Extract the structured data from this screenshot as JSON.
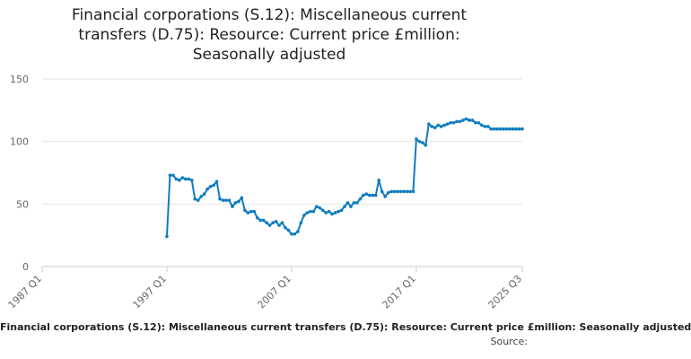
{
  "chart_data": {
    "type": "line",
    "title_lines": [
      "Financial corporations (S.12): Miscellaneous current",
      "transfers (D.75): Resource: Current price £million:",
      "Seasonally adjusted"
    ],
    "xlabel": "",
    "ylabel": "",
    "ylim": [
      0,
      150
    ],
    "yticks": [
      "0",
      "50",
      "100",
      "150"
    ],
    "xticks": [
      "1987 Q1",
      "1997 Q1",
      "2007 Q1",
      "2017 Q1",
      "2025 Q3"
    ],
    "x_range": [
      "1987 Q1",
      "2025 Q3"
    ],
    "grid": true,
    "line_color": "#0f7cc0",
    "series": [
      {
        "x": [
          "1997 Q1",
          "1997 Q2",
          "1997 Q3",
          "1997 Q4",
          "1998 Q1",
          "1998 Q2",
          "1998 Q3",
          "1998 Q4",
          "1999 Q1",
          "1999 Q2",
          "1999 Q3",
          "1999 Q4",
          "2000 Q1",
          "2000 Q2",
          "2000 Q3",
          "2000 Q4",
          "2001 Q1",
          "2001 Q2",
          "2001 Q3",
          "2001 Q4",
          "2002 Q1",
          "2002 Q2",
          "2002 Q3",
          "2002 Q4",
          "2003 Q1",
          "2003 Q2",
          "2003 Q3",
          "2003 Q4",
          "2004 Q1",
          "2004 Q2",
          "2004 Q3",
          "2004 Q4",
          "2005 Q1",
          "2005 Q2",
          "2005 Q3",
          "2005 Q4",
          "2006 Q1",
          "2006 Q2",
          "2006 Q3",
          "2006 Q4",
          "2007 Q1",
          "2007 Q2",
          "2007 Q3",
          "2007 Q4",
          "2008 Q1",
          "2008 Q2",
          "2008 Q3",
          "2008 Q4",
          "2009 Q1",
          "2009 Q2",
          "2009 Q3",
          "2009 Q4",
          "2010 Q1",
          "2010 Q2",
          "2010 Q3",
          "2010 Q4",
          "2011 Q1",
          "2011 Q2",
          "2011 Q3",
          "2011 Q4",
          "2012 Q1",
          "2012 Q2",
          "2012 Q3",
          "2012 Q4",
          "2013 Q1",
          "2013 Q2",
          "2013 Q3",
          "2013 Q4",
          "2014 Q1",
          "2014 Q2",
          "2014 Q3",
          "2014 Q4",
          "2015 Q1",
          "2015 Q2",
          "2015 Q3",
          "2015 Q4",
          "2016 Q1",
          "2016 Q2",
          "2016 Q3",
          "2016 Q4",
          "2017 Q1",
          "2017 Q2",
          "2017 Q3",
          "2017 Q4",
          "2018 Q1",
          "2018 Q2",
          "2018 Q3",
          "2018 Q4",
          "2019 Q1",
          "2019 Q2",
          "2019 Q3",
          "2019 Q4",
          "2020 Q1",
          "2020 Q2",
          "2020 Q3",
          "2020 Q4",
          "2021 Q1",
          "2021 Q2",
          "2021 Q3",
          "2021 Q4",
          "2022 Q1",
          "2022 Q2",
          "2022 Q3",
          "2022 Q4",
          "2023 Q1",
          "2023 Q2",
          "2023 Q3",
          "2023 Q4",
          "2024 Q1",
          "2024 Q2",
          "2024 Q3",
          "2024 Q4",
          "2025 Q1",
          "2025 Q2",
          "2025 Q3"
        ],
        "values": [
          24,
          73,
          73,
          70,
          69,
          71,
          70,
          70,
          69,
          54,
          53,
          56,
          58,
          62,
          64,
          65,
          68,
          54,
          53,
          53,
          53,
          48,
          51,
          52,
          55,
          45,
          43,
          44,
          44,
          39,
          37,
          37,
          35,
          33,
          35,
          36,
          33,
          35,
          31,
          29,
          26,
          26,
          28,
          35,
          41,
          43,
          44,
          44,
          48,
          47,
          45,
          43,
          44,
          42,
          43,
          44,
          45,
          48,
          51,
          48,
          51,
          51,
          54,
          57,
          58,
          57,
          57,
          57,
          69,
          60,
          56,
          59,
          60,
          60,
          60,
          60,
          60,
          60,
          60,
          60,
          102,
          100,
          99,
          97,
          114,
          112,
          111,
          113,
          112,
          113,
          114,
          115,
          115,
          116,
          116,
          117,
          118,
          117,
          117,
          115,
          115,
          113,
          112,
          112,
          110,
          110,
          110,
          110,
          110,
          110,
          110,
          110,
          110,
          110,
          110
        ]
      }
    ]
  },
  "footer": {
    "series_text": "Financial corporations (S.12): Miscellaneous current transfers (D.75): Resource: Current price £million: Seasonally adjusted",
    "source_text": "Source:"
  }
}
